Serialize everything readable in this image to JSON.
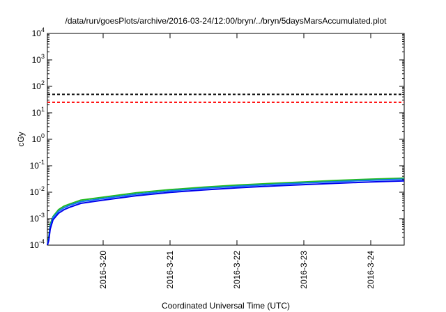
{
  "chart_data": {
    "type": "line",
    "title": "/data/run/goesPlots/archive/2016-03-24/12:00/bryn/../bryn/5daysMarsAccumulated.plot",
    "xlabel": "Coordinated Universal Time (UTC)",
    "ylabel": "cGy",
    "y_scale": "log",
    "ylim": [
      0.0001,
      10000
    ],
    "xlim": [
      "2016-03-19 04:00",
      "2016-03-24 12:00"
    ],
    "grid": false,
    "legend": "none",
    "x_ticks": [
      "2016-3-20",
      "2016-3-21",
      "2016-3-22",
      "2016-3-23",
      "2016-3-24"
    ],
    "y_ticks": [
      {
        "base": "10",
        "exp": "-4",
        "value": 0.0001
      },
      {
        "base": "10",
        "exp": "-3",
        "value": 0.001
      },
      {
        "base": "10",
        "exp": "-2",
        "value": 0.01
      },
      {
        "base": "10",
        "exp": "-1",
        "value": 0.1
      },
      {
        "base": "10",
        "exp": "0",
        "value": 1
      },
      {
        "base": "10",
        "exp": "1",
        "value": 10
      },
      {
        "base": "10",
        "exp": "2",
        "value": 100
      },
      {
        "base": "10",
        "exp": "3",
        "value": 1000
      },
      {
        "base": "10",
        "exp": "4",
        "value": 10000
      }
    ],
    "reference_lines": [
      {
        "y": 50,
        "color": "#000000",
        "style": "dashed"
      },
      {
        "y": 25,
        "color": "#ff0000",
        "style": "dashed"
      }
    ],
    "series": [
      {
        "color": "#22bb22",
        "x": [
          "2016-03-19 04:00",
          "2016-03-19 04:30",
          "2016-03-19 05:00",
          "2016-03-19 06:00",
          "2016-03-19 08:00",
          "2016-03-19 10:00",
          "2016-03-19 12:00",
          "2016-03-19 16:00",
          "2016-03-20 00:00",
          "2016-03-20 12:00",
          "2016-03-21 00:00",
          "2016-03-21 12:00",
          "2016-03-22 00:00",
          "2016-03-22 12:00",
          "2016-03-23 00:00",
          "2016-03-23 12:00",
          "2016-03-24 00:00",
          "2016-03-24 12:00"
        ],
        "y": [
          0.0001,
          0.0002,
          0.0006,
          0.0012,
          0.0022,
          0.003,
          0.0036,
          0.005,
          0.0065,
          0.0095,
          0.0125,
          0.0155,
          0.0185,
          0.0215,
          0.0245,
          0.028,
          0.031,
          0.034
        ]
      },
      {
        "color": "#1177ee",
        "x": [
          "2016-03-19 04:00",
          "2016-03-19 04:30",
          "2016-03-19 05:00",
          "2016-03-19 06:00",
          "2016-03-19 08:00",
          "2016-03-19 10:00",
          "2016-03-19 12:00",
          "2016-03-19 16:00",
          "2016-03-20 00:00",
          "2016-03-20 12:00",
          "2016-03-21 00:00",
          "2016-03-21 12:00",
          "2016-03-22 00:00",
          "2016-03-22 12:00",
          "2016-03-23 00:00",
          "2016-03-23 12:00",
          "2016-03-24 00:00",
          "2016-03-24 12:00"
        ],
        "y": [
          0.0001,
          0.00018,
          0.0005,
          0.0011,
          0.0019,
          0.0026,
          0.0032,
          0.0044,
          0.0058,
          0.0085,
          0.0112,
          0.014,
          0.0167,
          0.0195,
          0.0222,
          0.0252,
          0.0282,
          0.031
        ]
      },
      {
        "color": "#0000ee",
        "x": [
          "2016-03-19 04:00",
          "2016-03-19 04:30",
          "2016-03-19 05:00",
          "2016-03-19 06:00",
          "2016-03-19 08:00",
          "2016-03-19 10:00",
          "2016-03-19 12:00",
          "2016-03-19 16:00",
          "2016-03-20 00:00",
          "2016-03-20 12:00",
          "2016-03-21 00:00",
          "2016-03-21 12:00",
          "2016-03-22 00:00",
          "2016-03-22 12:00",
          "2016-03-23 00:00",
          "2016-03-23 12:00",
          "2016-03-24 00:00",
          "2016-03-24 12:00"
        ],
        "y": [
          0.0001,
          0.00015,
          0.0004,
          0.0009,
          0.0016,
          0.0022,
          0.0027,
          0.0038,
          0.005,
          0.0074,
          0.0098,
          0.0122,
          0.0146,
          0.017,
          0.0193,
          0.0218,
          0.0243,
          0.0268
        ]
      }
    ]
  }
}
